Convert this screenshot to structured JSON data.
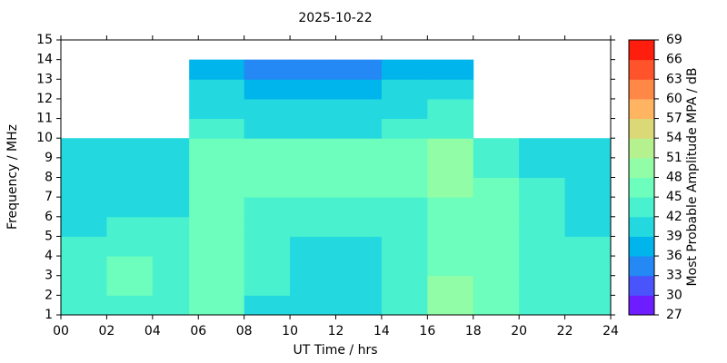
{
  "chart_data": {
    "type": "heatmap",
    "title": "2025-10-22",
    "x_label": "UT Time / hrs",
    "y_label": "Frequency / MHz",
    "x_edges": [
      0,
      2,
      4,
      5.6,
      8,
      10,
      12,
      14,
      16,
      18,
      20,
      22,
      24
    ],
    "y_edges": [
      1,
      2,
      3,
      4,
      5,
      6,
      7,
      8,
      9,
      10,
      11,
      12,
      13,
      14
    ],
    "values": [
      [
        42,
        44,
        42,
        46,
        41,
        40,
        40,
        42,
        48,
        45,
        43,
        42
      ],
      [
        43,
        46,
        44,
        46,
        42,
        41,
        41,
        43,
        48,
        46,
        44,
        43
      ],
      [
        43,
        47,
        44,
        46,
        42,
        41,
        41,
        42,
        47,
        45,
        44,
        43
      ],
      [
        42,
        44,
        43,
        45,
        42,
        41,
        41,
        42,
        46,
        45,
        44,
        42
      ],
      [
        41,
        42,
        42,
        45,
        43,
        42,
        42,
        43,
        46,
        45,
        43,
        41
      ],
      [
        41,
        41,
        41,
        46,
        44,
        43,
        43,
        44,
        47,
        46,
        43,
        41
      ],
      [
        41,
        41,
        41,
        47,
        46,
        45,
        45,
        46,
        48,
        45,
        42,
        41
      ],
      [
        40,
        40,
        40,
        47,
        46,
        46,
        46,
        47,
        49,
        44,
        41,
        40
      ],
      [
        40,
        40,
        40,
        46,
        45,
        45,
        45,
        46,
        49,
        44,
        41,
        40
      ],
      [
        null,
        null,
        null,
        42,
        41,
        41,
        41,
        42,
        44,
        null,
        null,
        null
      ],
      [
        null,
        null,
        null,
        41,
        40,
        40,
        40,
        41,
        43,
        null,
        null,
        null
      ],
      [
        null,
        null,
        null,
        39,
        38,
        38,
        38,
        39,
        41,
        null,
        null,
        null
      ],
      [
        null,
        null,
        null,
        36,
        35,
        35,
        35,
        36,
        38,
        null,
        null,
        null
      ]
    ],
    "xlim": [
      0,
      24
    ],
    "xticks": [
      {
        "value": 0,
        "label": "00"
      },
      {
        "value": 2,
        "label": "02"
      },
      {
        "value": 4,
        "label": "04"
      },
      {
        "value": 6,
        "label": "06"
      },
      {
        "value": 8,
        "label": "08"
      },
      {
        "value": 10,
        "label": "10"
      },
      {
        "value": 12,
        "label": "12"
      },
      {
        "value": 14,
        "label": "14"
      },
      {
        "value": 16,
        "label": "16"
      },
      {
        "value": 18,
        "label": "18"
      },
      {
        "value": 20,
        "label": "20"
      },
      {
        "value": 22,
        "label": "22"
      },
      {
        "value": 24,
        "label": "24"
      }
    ],
    "ylim": [
      1,
      15
    ],
    "yticks": [
      1,
      2,
      3,
      4,
      5,
      6,
      7,
      8,
      9,
      10,
      11,
      12,
      13,
      14,
      15
    ],
    "colorbar": {
      "label": "Most Probable Amplitude MPA / dB",
      "ticks": [
        27,
        30,
        33,
        36,
        39,
        42,
        45,
        48,
        51,
        54,
        57,
        60,
        63,
        66,
        69
      ],
      "colors": [
        "#6d1dff",
        "#4954fb",
        "#2488f5",
        "#00b4ec",
        "#24d8df",
        "#49f1cf",
        "#6dfdbc",
        "#92fda7",
        "#b6f190",
        "#dad877",
        "#ffb462",
        "#ff8847",
        "#ff542b",
        "#ff1d0e"
      ]
    }
  }
}
